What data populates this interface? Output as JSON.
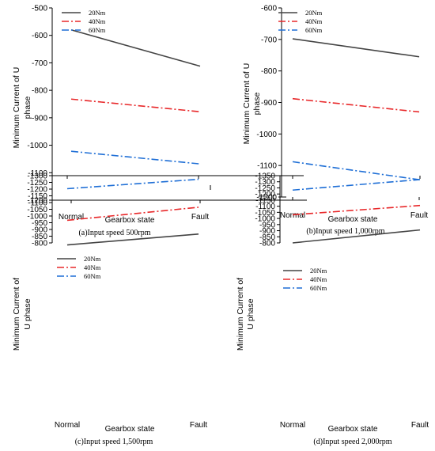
{
  "figure": {
    "x_categories": [
      "Normal",
      "Fault"
    ],
    "xlabel": "Gearbox state",
    "ylabel_line1": "Minimum Current of U",
    "ylabel_line2": "phase",
    "ylabel_line1_alt": "Minimum Current of",
    "ylabel_line2_alt": "U phase"
  },
  "chart_data": [
    {
      "type": "line",
      "caption": "(a)Input speed 500rpm",
      "xlabel": "Gearbox state",
      "ylabel": "Minimum Current of U phase",
      "categories": [
        "Normal",
        "Fault"
      ],
      "ylim": [
        -1200,
        -500
      ],
      "yticks": [
        -500,
        -600,
        -700,
        -800,
        -900,
        -1000,
        -1100,
        -1200
      ],
      "legend_position": "top-left",
      "series": [
        {
          "name": "20Nm",
          "color": "#444444",
          "dash": "solid",
          "values": [
            -580,
            -712
          ]
        },
        {
          "name": "40Nm",
          "color": "#e8282a",
          "dash": "dash-dot",
          "values": [
            -832,
            -878
          ]
        },
        {
          "name": "60Nm",
          "color": "#1f6fd6",
          "dash": "dash-dot",
          "values": [
            -1022,
            -1068
          ]
        }
      ]
    },
    {
      "type": "line",
      "caption": "(b)Input speed 1,000rpm",
      "xlabel": "Gearbox state",
      "ylabel": "Minimum Current of U phase",
      "categories": [
        "Normal",
        "Fault"
      ],
      "ylim": [
        -1200,
        -600
      ],
      "yticks": [
        -600,
        -700,
        -800,
        -900,
        -1000,
        -1100,
        -1200
      ],
      "legend_position": "top-left",
      "series": [
        {
          "name": "20Nm",
          "color": "#444444",
          "dash": "solid",
          "values": [
            -698,
            -755
          ]
        },
        {
          "name": "40Nm",
          "color": "#e8282a",
          "dash": "dash-dot",
          "values": [
            -888,
            -930
          ]
        },
        {
          "name": "60Nm",
          "color": "#1f6fd6",
          "dash": "dash-dot",
          "values": [
            -1088,
            -1145
          ]
        }
      ]
    },
    {
      "type": "line",
      "caption": "(c)Input speed 1,500rpm",
      "xlabel": "Gearbox state",
      "ylabel": "Minimum Current of U phase",
      "categories": [
        "Normal",
        "Fault"
      ],
      "ylim": [
        -1300,
        -800
      ],
      "yticks": [
        -800,
        -850,
        -900,
        -950,
        -1000,
        -1050,
        -1100,
        -1150,
        -1200,
        -1250,
        -1300
      ],
      "legend_position": "top-left",
      "series": [
        {
          "name": "20Nm",
          "color": "#444444",
          "dash": "solid",
          "values": [
            -785,
            -866
          ]
        },
        {
          "name": "40Nm",
          "color": "#e8282a",
          "dash": "dash-dot",
          "values": [
            -968,
            -1065
          ]
        },
        {
          "name": "60Nm",
          "color": "#1f6fd6",
          "dash": "dash-dot",
          "values": [
            -1203,
            -1273
          ]
        }
      ]
    },
    {
      "type": "line",
      "caption": "(d)Input speed 2,000rpm",
      "xlabel": "Gearbox state",
      "ylabel": "Minimum Current of U phase",
      "categories": [
        "Normal",
        "Fault"
      ],
      "ylim": [
        -1350,
        -800
      ],
      "yticks": [
        -800,
        -850,
        -900,
        -950,
        -1000,
        -1050,
        -1100,
        -1150,
        -1200,
        -1250,
        -1300,
        -1350
      ],
      "legend_position": "top-left",
      "series": [
        {
          "name": "20Nm",
          "color": "#444444",
          "dash": "solid",
          "values": [
            -800,
            -906
          ]
        },
        {
          "name": "40Nm",
          "color": "#e8282a",
          "dash": "dash-dot",
          "values": [
            -1030,
            -1106
          ]
        },
        {
          "name": "60Nm",
          "color": "#1f6fd6",
          "dash": "dash-dot",
          "values": [
            -1232,
            -1318
          ]
        }
      ]
    }
  ]
}
